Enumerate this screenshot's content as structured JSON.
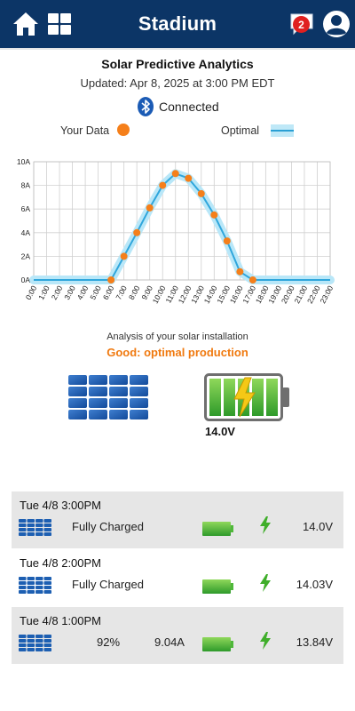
{
  "header": {
    "title": "Stadium",
    "notification_count": "2",
    "icons": [
      "home-icon",
      "grid-icon",
      "message-icon",
      "user-icon"
    ],
    "background_color": "#0c3566"
  },
  "summary": {
    "title": "Solar Predictive Analytics",
    "updated": "Updated: Apr 8, 2025 at 3:00 PM EDT",
    "connection": "Connected",
    "legend_your_data": "Your Data",
    "legend_optimal": "Optimal"
  },
  "chart_data": {
    "type": "line",
    "title": "",
    "xlabel": "",
    "ylabel": "",
    "x_ticks": [
      "0:00",
      "1:00",
      "2:00",
      "3:00",
      "4:00",
      "5:00",
      "6:00",
      "7:00",
      "8:00",
      "9:00",
      "10:00",
      "11:00",
      "12:00",
      "13:00",
      "14:00",
      "15:00",
      "16:00",
      "17:00",
      "18:00",
      "19:00",
      "20:00",
      "21:00",
      "22:00",
      "23:00"
    ],
    "y_ticks": [
      "0A",
      "2A",
      "4A",
      "6A",
      "8A",
      "10A"
    ],
    "xlim": [
      0,
      23
    ],
    "ylim": [
      0,
      10
    ],
    "grid": true,
    "series": [
      {
        "name": "Optimal",
        "color": "#5bc8ee",
        "x": [
          0,
          1,
          2,
          3,
          4,
          5,
          6,
          7,
          8,
          9,
          10,
          11,
          12,
          13,
          14,
          15,
          16,
          17,
          18,
          19,
          20,
          21,
          22,
          23
        ],
        "y": [
          0,
          0,
          0,
          0,
          0,
          0,
          0,
          2.0,
          4.0,
          6.1,
          8.0,
          9.0,
          8.6,
          7.3,
          5.5,
          3.3,
          0.7,
          0,
          0,
          0,
          0,
          0,
          0,
          0
        ]
      },
      {
        "name": "Your Data",
        "color": "#f57f1a",
        "x": [
          6,
          7,
          8,
          9,
          10,
          11,
          12,
          13,
          14,
          15,
          16,
          17
        ],
        "y": [
          0,
          2.0,
          4.0,
          6.1,
          8.0,
          9.0,
          8.6,
          7.3,
          5.5,
          3.3,
          0.7,
          0
        ]
      }
    ]
  },
  "analysis": {
    "label": "Analysis of your solar installation",
    "status": "Good: optimal production",
    "status_color": "#f07a10",
    "voltage": "14.0V"
  },
  "history": [
    {
      "when": "Tue 4/8 3:00PM",
      "state": "Fully Charged",
      "percent": "",
      "current": "",
      "voltage": "14.0V"
    },
    {
      "when": "Tue 4/8 2:00PM",
      "state": "Fully Charged",
      "percent": "",
      "current": "",
      "voltage": "14.03V"
    },
    {
      "when": "Tue 4/8 1:00PM",
      "state": "",
      "percent": "92%",
      "current": "9.04A",
      "voltage": "13.84V"
    }
  ]
}
